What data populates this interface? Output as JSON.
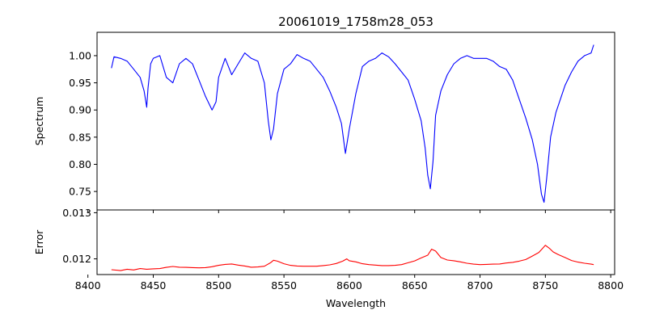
{
  "chart_data": [
    {
      "type": "line",
      "panel": "spectrum",
      "title": "20061019_1758m28_053",
      "xlabel": "",
      "ylabel": "Spectrum",
      "xlim": [
        8407,
        8803
      ],
      "ylim": [
        0.716,
        1.043
      ],
      "xticks": [
        8400,
        8450,
        8500,
        8550,
        8600,
        8650,
        8700,
        8750,
        8800
      ],
      "yticks": [
        0.75,
        0.8,
        0.85,
        0.9,
        0.95,
        1.0
      ],
      "ytick_labels": [
        "0.75",
        "0.80",
        "0.85",
        "0.90",
        "0.95",
        "1.00"
      ],
      "grid": false,
      "color": "#0000ff",
      "series": [
        {
          "x": [
            8418,
            8420,
            8425,
            8430,
            8435,
            8440,
            8443,
            8445,
            8446,
            8448,
            8450,
            8455,
            8460,
            8465,
            8470,
            8475,
            8480,
            8485,
            8490,
            8495,
            8498,
            8500,
            8505,
            8510,
            8515,
            8520,
            8525,
            8530,
            8535,
            8538,
            8540,
            8542,
            8545,
            8550,
            8555,
            8560,
            8565,
            8570,
            8575,
            8580,
            8585,
            8590,
            8594,
            8597,
            8600,
            8605,
            8610,
            8615,
            8620,
            8625,
            8630,
            8635,
            8640,
            8645,
            8650,
            8655,
            8658,
            8660,
            8662,
            8664,
            8666,
            8670,
            8675,
            8680,
            8685,
            8690,
            8695,
            8700,
            8705,
            8710,
            8715,
            8720,
            8725,
            8730,
            8735,
            8740,
            8744,
            8747,
            8749,
            8751,
            8754,
            8758,
            8765,
            8770,
            8775,
            8780,
            8785,
            8787
          ],
          "y": [
            0.977,
            0.998,
            0.995,
            0.99,
            0.975,
            0.96,
            0.935,
            0.905,
            0.94,
            0.985,
            0.995,
            1.0,
            0.96,
            0.95,
            0.985,
            0.995,
            0.985,
            0.955,
            0.925,
            0.9,
            0.915,
            0.96,
            0.995,
            0.965,
            0.985,
            1.005,
            0.995,
            0.99,
            0.95,
            0.88,
            0.845,
            0.865,
            0.93,
            0.975,
            0.985,
            1.002,
            0.995,
            0.99,
            0.975,
            0.96,
            0.935,
            0.905,
            0.875,
            0.82,
            0.865,
            0.93,
            0.98,
            0.99,
            0.995,
            1.005,
            0.998,
            0.985,
            0.97,
            0.955,
            0.92,
            0.88,
            0.83,
            0.78,
            0.755,
            0.805,
            0.89,
            0.935,
            0.965,
            0.985,
            0.995,
            1.0,
            0.995,
            0.995,
            0.995,
            0.99,
            0.98,
            0.975,
            0.955,
            0.92,
            0.885,
            0.845,
            0.8,
            0.745,
            0.73,
            0.775,
            0.85,
            0.895,
            0.945,
            0.97,
            0.99,
            1.0,
            1.005,
            1.02
          ]
        }
      ]
    },
    {
      "type": "line",
      "panel": "error",
      "title": "",
      "xlabel": "Wavelength",
      "ylabel": "Error",
      "xlim": [
        8407,
        8803
      ],
      "ylim": [
        0.01166,
        0.01306
      ],
      "xticks": [
        8400,
        8450,
        8500,
        8550,
        8600,
        8650,
        8700,
        8750,
        8800
      ],
      "xtick_labels": [
        "8400",
        "8450",
        "8500",
        "8550",
        "8600",
        "8650",
        "8700",
        "8750",
        "8800"
      ],
      "yticks": [
        0.012,
        0.013
      ],
      "ytick_labels": [
        "0.012",
        "0.013"
      ],
      "grid": false,
      "color": "#ff0000",
      "series": [
        {
          "x": [
            8418,
            8425,
            8430,
            8435,
            8440,
            8445,
            8450,
            8455,
            8460,
            8465,
            8470,
            8475,
            8480,
            8485,
            8490,
            8495,
            8500,
            8505,
            8510,
            8515,
            8520,
            8525,
            8530,
            8535,
            8540,
            8542,
            8545,
            8550,
            8555,
            8560,
            8565,
            8570,
            8575,
            8580,
            8585,
            8590,
            8595,
            8598,
            8600,
            8605,
            8610,
            8615,
            8620,
            8625,
            8630,
            8635,
            8640,
            8645,
            8650,
            8655,
            8660,
            8663,
            8666,
            8670,
            8675,
            8680,
            8685,
            8690,
            8695,
            8700,
            8705,
            8710,
            8715,
            8720,
            8725,
            8730,
            8735,
            8740,
            8745,
            8748,
            8750,
            8753,
            8756,
            8760,
            8765,
            8770,
            8775,
            8780,
            8785,
            8787
          ],
          "y": [
            0.011765,
            0.011745,
            0.011775,
            0.01176,
            0.01179,
            0.011775,
            0.011785,
            0.01179,
            0.011815,
            0.011835,
            0.01182,
            0.011815,
            0.01181,
            0.011805,
            0.01181,
            0.01183,
            0.01186,
            0.01188,
            0.01189,
            0.011865,
            0.011845,
            0.01182,
            0.011825,
            0.01184,
            0.01192,
            0.01197,
            0.01195,
            0.011895,
            0.01186,
            0.011845,
            0.01184,
            0.01184,
            0.01184,
            0.011855,
            0.01187,
            0.0119,
            0.01195,
            0.012,
            0.01196,
            0.011935,
            0.011895,
            0.011875,
            0.011865,
            0.011855,
            0.011855,
            0.01186,
            0.011875,
            0.011915,
            0.011955,
            0.01202,
            0.01208,
            0.01221,
            0.01217,
            0.01203,
            0.011975,
            0.01196,
            0.011935,
            0.011905,
            0.011885,
            0.011875,
            0.01188,
            0.011885,
            0.01189,
            0.01191,
            0.011925,
            0.01195,
            0.011985,
            0.01206,
            0.01214,
            0.01223,
            0.012295,
            0.01223,
            0.01215,
            0.01209,
            0.01203,
            0.011965,
            0.01193,
            0.011905,
            0.011885,
            0.011875
          ]
        }
      ]
    }
  ]
}
